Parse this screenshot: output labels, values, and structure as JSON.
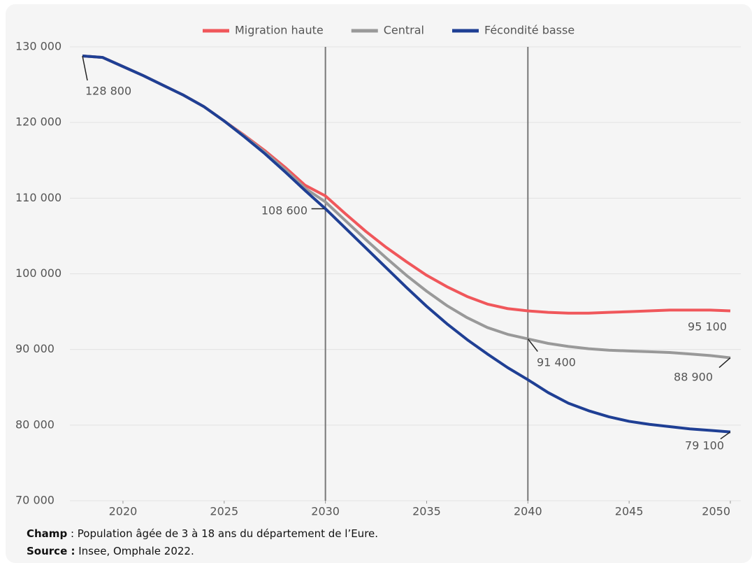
{
  "chart_data": {
    "type": "line",
    "x": [
      2018,
      2019,
      2020,
      2021,
      2022,
      2023,
      2024,
      2025,
      2026,
      2027,
      2028,
      2029,
      2030,
      2031,
      2032,
      2033,
      2034,
      2035,
      2036,
      2037,
      2038,
      2039,
      2040,
      2041,
      2042,
      2043,
      2044,
      2045,
      2046,
      2047,
      2048,
      2049,
      2050
    ],
    "series": [
      {
        "name": "Migration haute",
        "color": "#f0575b",
        "values": [
          128800,
          128600,
          127400,
          126200,
          124900,
          123600,
          122100,
          120200,
          118300,
          116300,
          114100,
          111700,
          110300,
          107900,
          105600,
          103500,
          101600,
          99800,
          98300,
          97000,
          96000,
          95400,
          95100,
          94900,
          94800,
          94800,
          94900,
          95000,
          95100,
          95200,
          95200,
          95200,
          95100
        ]
      },
      {
        "name": "Central",
        "color": "#999999",
        "values": [
          128800,
          128600,
          127400,
          126200,
          124900,
          123600,
          122100,
          120200,
          118200,
          116100,
          113800,
          111300,
          109500,
          107000,
          104500,
          102100,
          99800,
          97700,
          95800,
          94200,
          92900,
          92000,
          91400,
          90800,
          90400,
          90100,
          89900,
          89800,
          89700,
          89600,
          89400,
          89200,
          88900
        ]
      },
      {
        "name": "Fécondité basse",
        "color": "#1f3f94",
        "values": [
          128800,
          128600,
          127400,
          126200,
          124900,
          123600,
          122100,
          120200,
          118100,
          115900,
          113500,
          111000,
          108600,
          106000,
          103400,
          100800,
          98200,
          95700,
          93400,
          91300,
          89400,
          87600,
          86000,
          84300,
          82900,
          81900,
          81100,
          80500,
          80100,
          79800,
          79500,
          79300,
          79100
        ]
      }
    ],
    "xlim": [
      2018,
      2050
    ],
    "xticks": [
      2020,
      2025,
      2030,
      2035,
      2040,
      2045,
      2050
    ],
    "ylim": [
      70000,
      130000
    ],
    "yticks": [
      {
        "value": 70000,
        "label": "70 000"
      },
      {
        "value": 80000,
        "label": "80 000"
      },
      {
        "value": 90000,
        "label": "90 000"
      },
      {
        "value": 100000,
        "label": "100 000"
      },
      {
        "value": 110000,
        "label": "110 000"
      },
      {
        "value": 120000,
        "label": "120 000"
      },
      {
        "value": 130000,
        "label": "130 000"
      }
    ],
    "vlines": [
      2030,
      2040
    ],
    "annotations": [
      {
        "x": 2018,
        "y": 128800,
        "label": "128 800"
      },
      {
        "x": 2030,
        "y": 108600,
        "label": "108 600"
      },
      {
        "x": 2040,
        "y": 91400,
        "label": "91 400"
      },
      {
        "x": 2050,
        "y": 95100,
        "label": "95 100"
      },
      {
        "x": 2050,
        "y": 88900,
        "label": "88 900"
      },
      {
        "x": 2050,
        "y": 79100,
        "label": "79 100"
      }
    ],
    "grid": true,
    "notes": [
      {
        "bold": "Champ",
        "text": " : Population âgée de 3 à 18 ans du département de l’Eure."
      },
      {
        "bold": "Source :",
        "text": " Insee, Omphale 2022."
      }
    ]
  }
}
